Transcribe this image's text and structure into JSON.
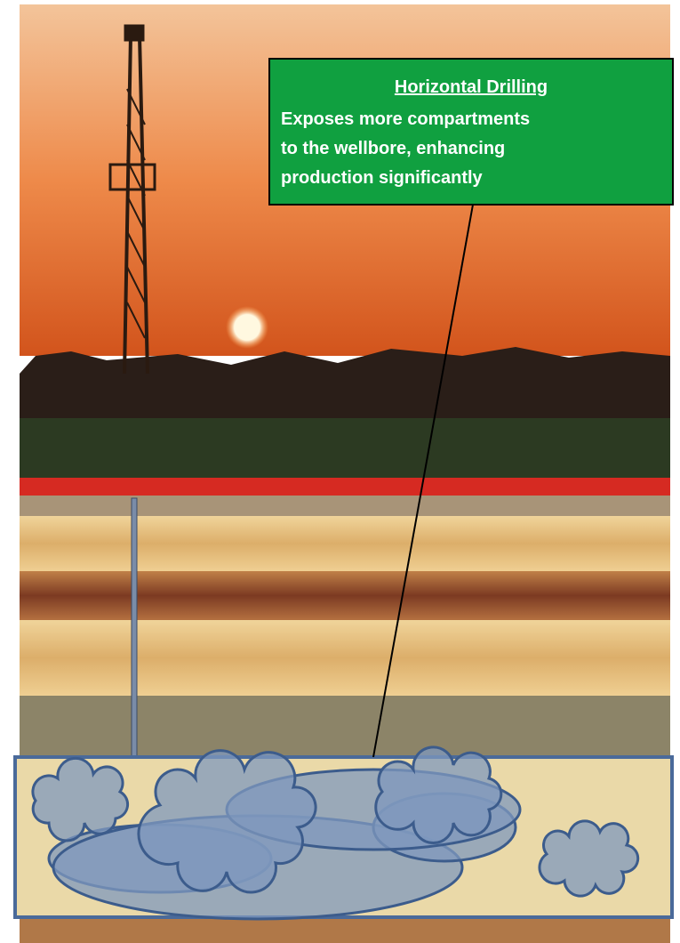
{
  "callout": {
    "title": "Horizontal Drilling",
    "lines": [
      "Exposes more compartments",
      "to the wellbore, enhancing",
      "production significantly"
    ]
  }
}
